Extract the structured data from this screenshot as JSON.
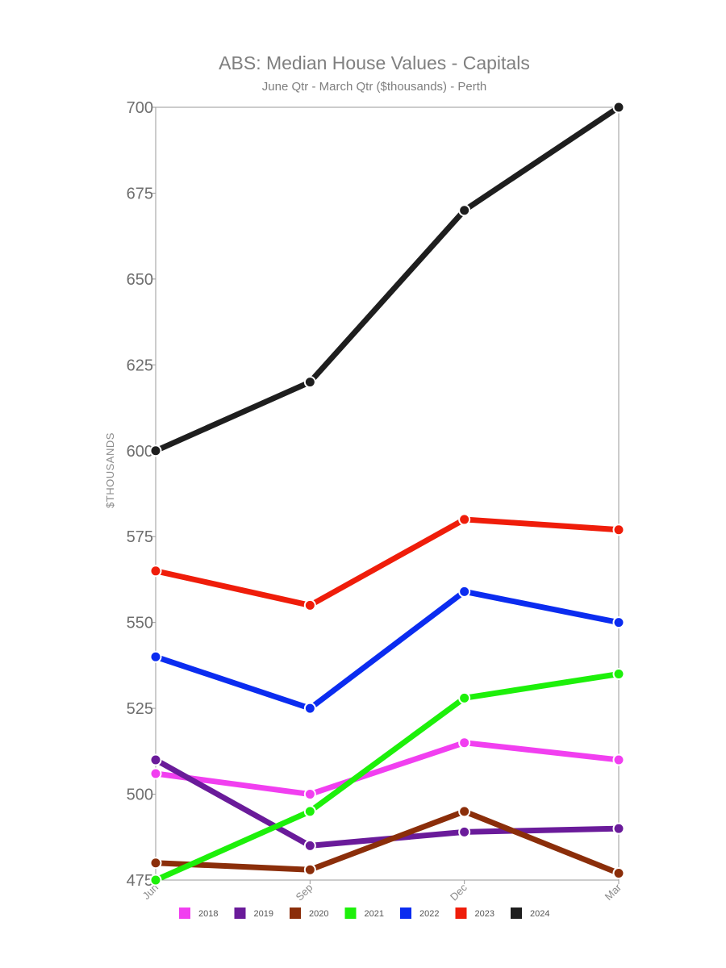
{
  "chart_data": {
    "type": "line",
    "title": "ABS: Median House Values - Capitals",
    "subtitle": "June Qtr - March Qtr ($thousands) - Perth",
    "ylabel": "$THOUSANDS",
    "xlabel": "",
    "categories": [
      "Jun",
      "Sep",
      "Dec",
      "Mar"
    ],
    "ylim": [
      475,
      700
    ],
    "yticks": [
      475,
      500,
      525,
      550,
      575,
      600,
      625,
      650,
      675,
      700
    ],
    "grid": false,
    "legend_position": "bottom",
    "series": [
      {
        "name": "2018",
        "color": "#f13ff0",
        "values": [
          506,
          500,
          515,
          510
        ]
      },
      {
        "name": "2019",
        "color": "#6a1b9a",
        "values": [
          510,
          485,
          489,
          490
        ]
      },
      {
        "name": "2020",
        "color": "#8b2e0a",
        "values": [
          480,
          478,
          495,
          477
        ]
      },
      {
        "name": "2021",
        "color": "#1df00a",
        "values": [
          475,
          495,
          528,
          535
        ]
      },
      {
        "name": "2022",
        "color": "#0b2cf0",
        "values": [
          540,
          525,
          559,
          550
        ]
      },
      {
        "name": "2023",
        "color": "#ef1d0a",
        "values": [
          565,
          555,
          580,
          577
        ]
      },
      {
        "name": "2024",
        "color": "#1e1e1e",
        "values": [
          600,
          620,
          670,
          700
        ]
      }
    ]
  }
}
